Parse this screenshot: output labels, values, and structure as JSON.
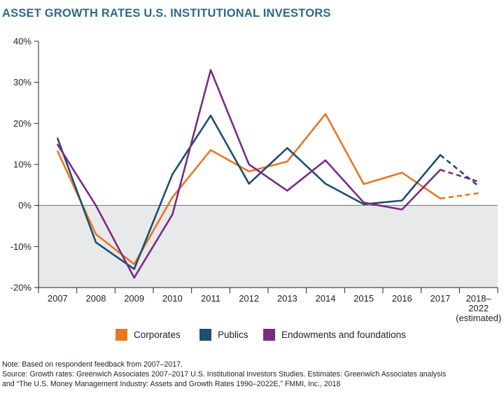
{
  "title": "ASSET GROWTH RATES U.S. INSTITUTIONAL INVESTORS",
  "chart_data": {
    "type": "line",
    "categories": [
      "2007",
      "2008",
      "2009",
      "2010",
      "2011",
      "2012",
      "2013",
      "2014",
      "2015",
      "2016",
      "2017",
      "2018–2022 (estimated)"
    ],
    "category_labels": [
      [
        "2007"
      ],
      [
        "2008"
      ],
      [
        "2009"
      ],
      [
        "2010"
      ],
      [
        "2011"
      ],
      [
        "2012"
      ],
      [
        "2013"
      ],
      [
        "2014"
      ],
      [
        "2015"
      ],
      [
        "2016"
      ],
      [
        "2017"
      ],
      [
        "2018–",
        "2022",
        "(estimated)"
      ]
    ],
    "y_ticks": [
      "40%",
      "30%",
      "20%",
      "10%",
      "0%",
      "-10%",
      "-20%"
    ],
    "ylim": [
      -20,
      40
    ],
    "y_unit": "%",
    "estimated_from": "2017",
    "negative_region_shaded": true,
    "legend_position": "bottom",
    "series": [
      {
        "name": "Corporates",
        "color": "#e87722",
        "values": [
          13.2,
          -7.0,
          -14.3,
          2.0,
          13.5,
          8.3,
          10.7,
          22.3,
          5.2,
          8.0,
          1.7,
          3.0
        ]
      },
      {
        "name": "Publics",
        "color": "#1d4f6e",
        "values": [
          16.3,
          -9.0,
          -15.5,
          7.6,
          21.9,
          5.3,
          14.0,
          5.3,
          0.3,
          1.2,
          12.3,
          4.7
        ]
      },
      {
        "name": "Endowments and foundations",
        "color": "#7b2b83",
        "values": [
          14.8,
          0.0,
          -17.6,
          -2.2,
          33.0,
          10.0,
          3.6,
          11.0,
          0.7,
          -1.0,
          8.7,
          5.8
        ]
      }
    ]
  },
  "notes": [
    "Note: Based on respondent feedback from 2007–2017.",
    "Source: Growth rates: Greenwich Associates 2007–2017 U.S. Institutional Investors Studies. Estimates: Greenwich Associates analysis",
    "and “The U.S. Money Management Industry: Assets and Growth Rates 1990–2022E,” FMMI, Inc., 2018"
  ]
}
